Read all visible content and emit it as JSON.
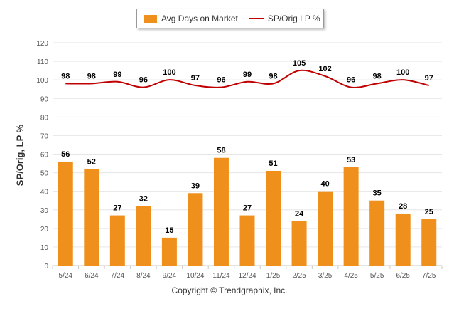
{
  "chart_data": {
    "type": "bar",
    "title": "",
    "xlabel": "",
    "ylabel": "SP/Orig, LP %",
    "ylim": [
      0,
      120
    ],
    "yticks": [
      0,
      10,
      20,
      30,
      40,
      50,
      60,
      70,
      80,
      90,
      100,
      110,
      120
    ],
    "grid": true,
    "legend_placement": "top-center",
    "categories": [
      "5/24",
      "6/24",
      "7/24",
      "8/24",
      "9/24",
      "10/24",
      "11/24",
      "12/24",
      "1/25",
      "2/25",
      "3/25",
      "4/25",
      "5/25",
      "6/25",
      "7/25"
    ],
    "series": [
      {
        "name": "Avg Days on Market",
        "type": "bar",
        "color": "#f0901c",
        "values": [
          56,
          52,
          27,
          32,
          15,
          39,
          58,
          27,
          51,
          24,
          40,
          53,
          35,
          28,
          25
        ]
      },
      {
        "name": "SP/Orig LP %",
        "type": "line",
        "color": "#c00000",
        "values": [
          98,
          98,
          99,
          96,
          100,
          97,
          96,
          99,
          98,
          105,
          102,
          96,
          98,
          100,
          97
        ]
      }
    ]
  },
  "copyright": "Copyright © Trendgraphix, Inc."
}
